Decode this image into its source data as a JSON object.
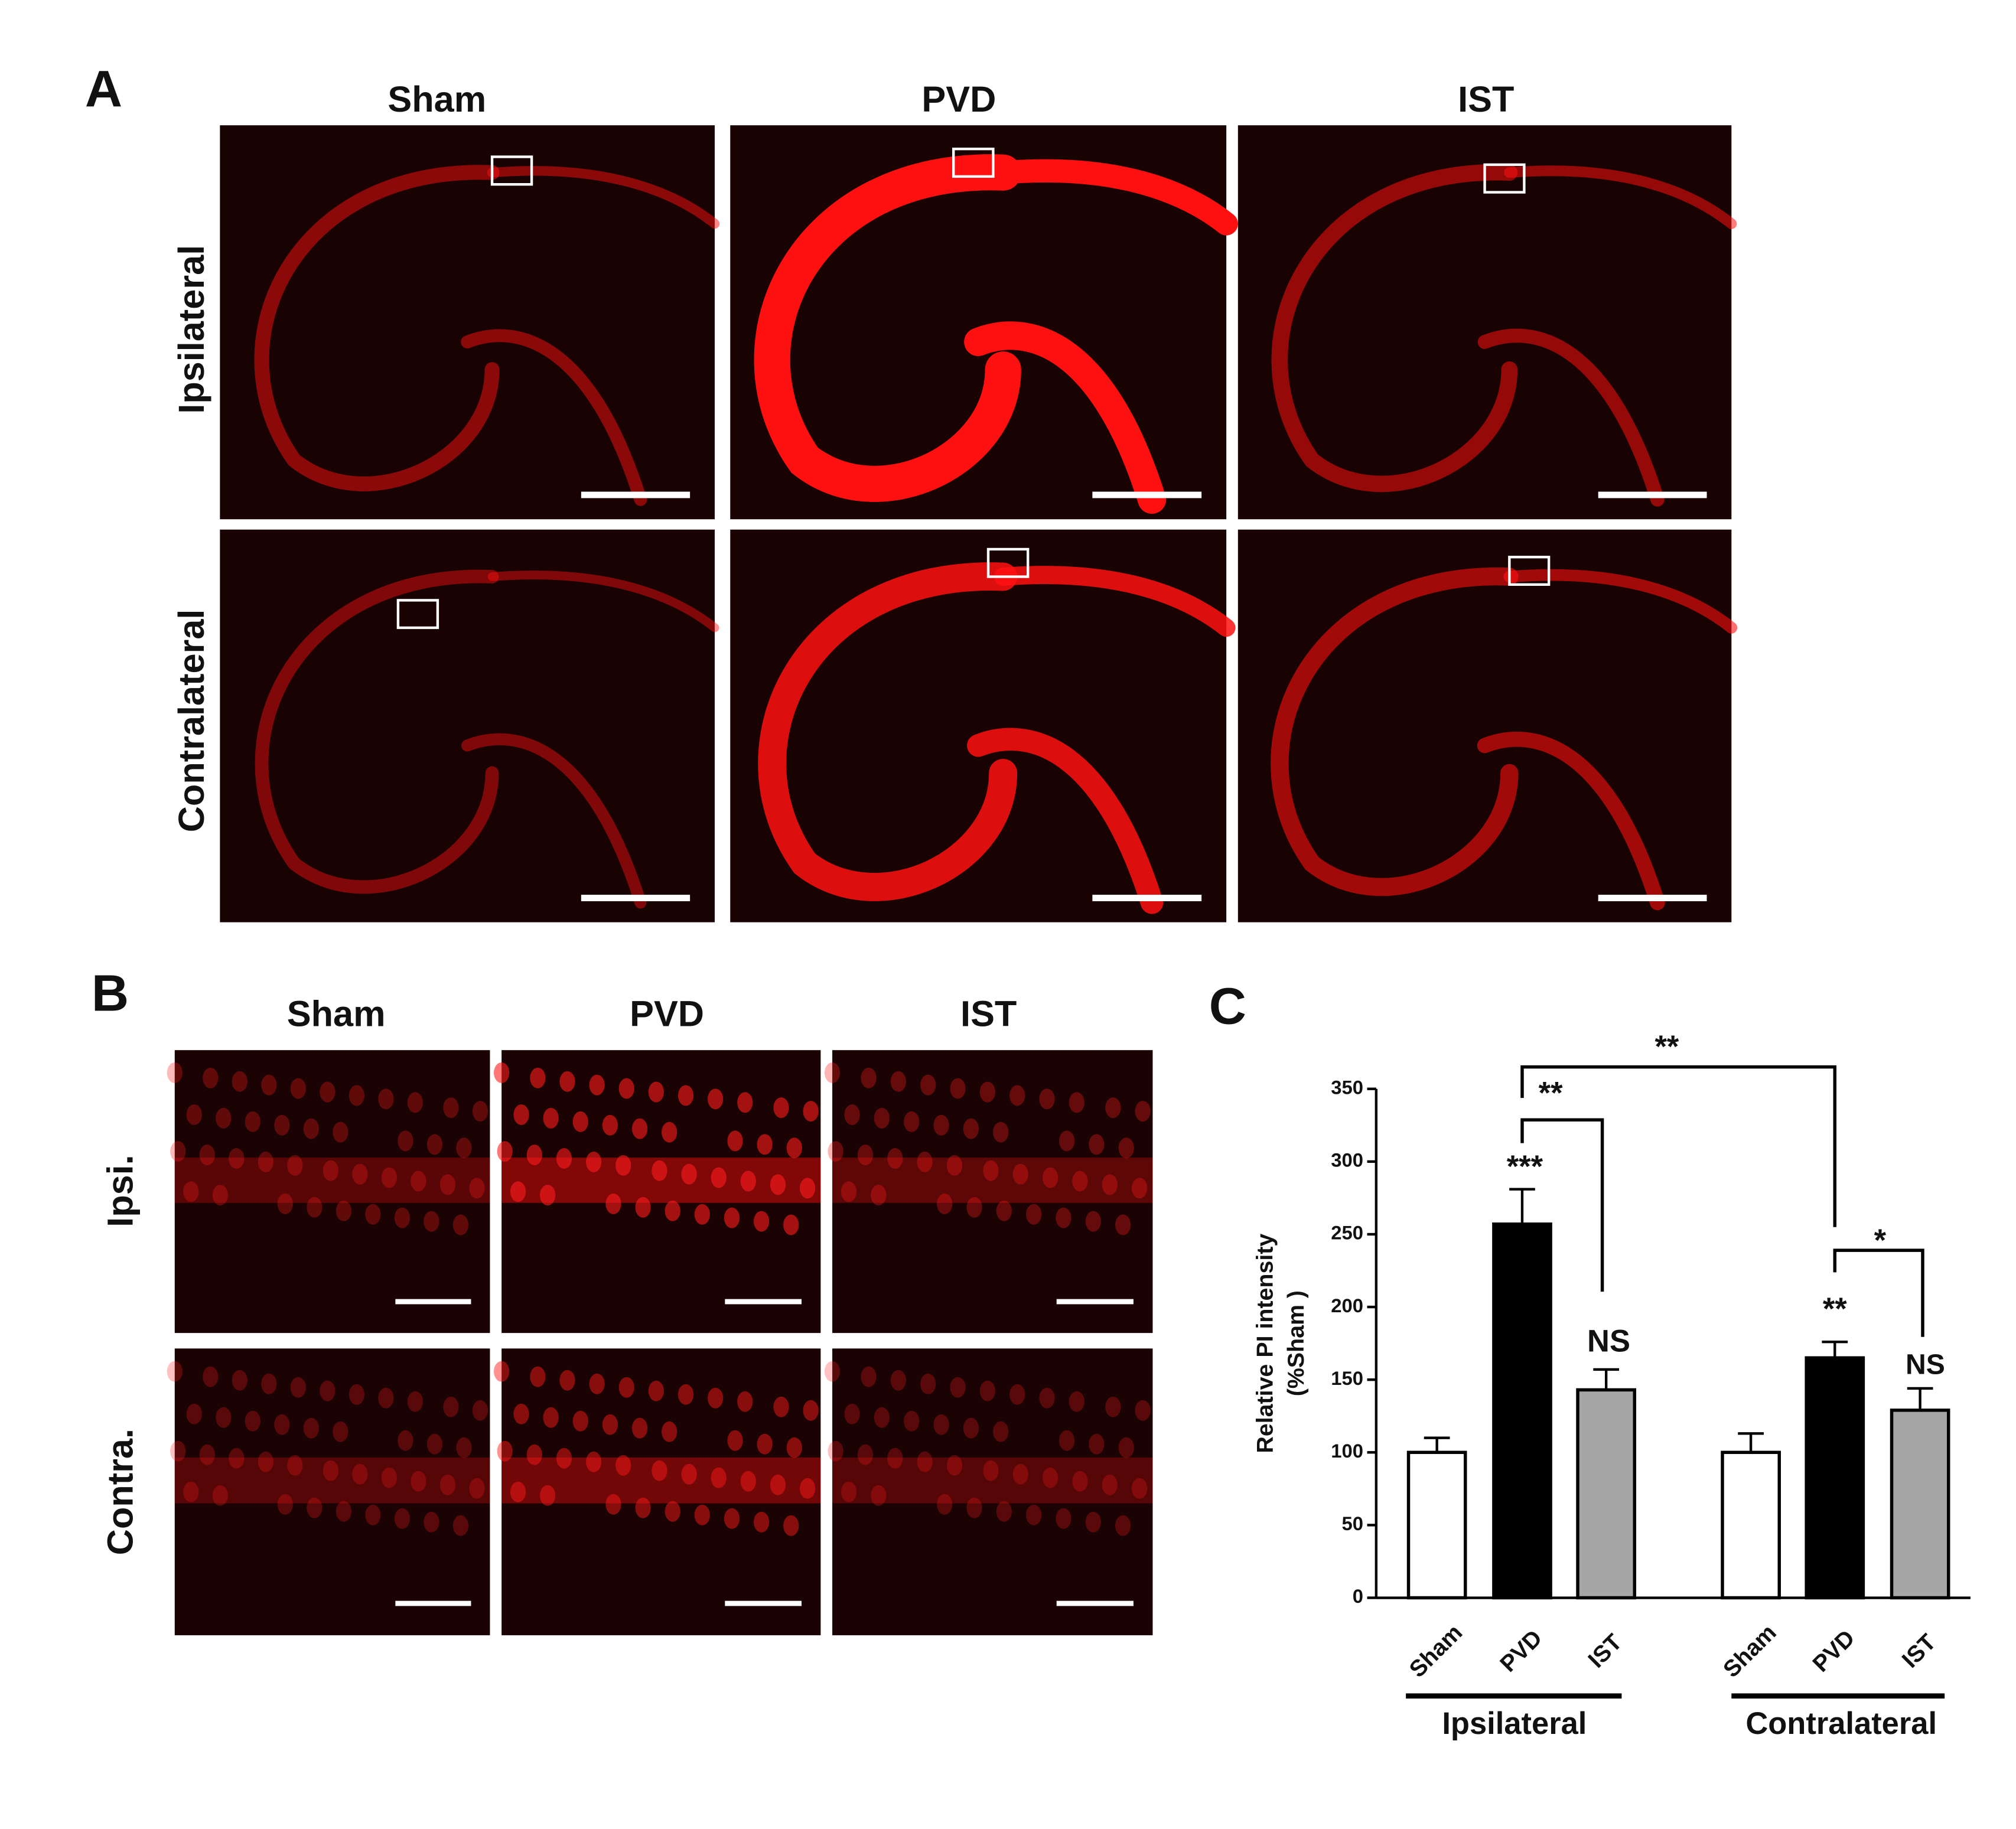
{
  "panel_labels": [
    "A",
    "B",
    "C"
  ],
  "panel_a": {
    "columns": [
      "Sham",
      "PVD",
      "IST"
    ],
    "rows": [
      "Ipsilateral",
      "Contralateral"
    ]
  },
  "panel_b": {
    "columns": [
      "Sham",
      "PVD",
      "IST"
    ],
    "rows": [
      "Ipsi.",
      "Contra."
    ]
  },
  "chart_data": {
    "type": "bar",
    "y_label": [
      "Relative PI intensity",
      "(%Sham )"
    ],
    "categories": [
      "Sham",
      "PVD",
      "IST",
      "Sham",
      "PVD",
      "IST"
    ],
    "groups": [
      "Ipsilateral",
      "Contralateral"
    ],
    "values": [
      100,
      257,
      143,
      100,
      165,
      129
    ],
    "errors": [
      10,
      24,
      14,
      13,
      11,
      15
    ],
    "colors": [
      "#ffffff",
      "#000000",
      "#a6a6a6",
      "#ffffff",
      "#000000",
      "#a6a6a6"
    ],
    "ylim": [
      0,
      350
    ],
    "yticks": [
      0,
      50,
      100,
      150,
      200,
      250,
      300,
      350
    ],
    "annotations": [
      "***",
      "NS",
      "**",
      "NS",
      "**",
      "**",
      "*"
    ]
  }
}
